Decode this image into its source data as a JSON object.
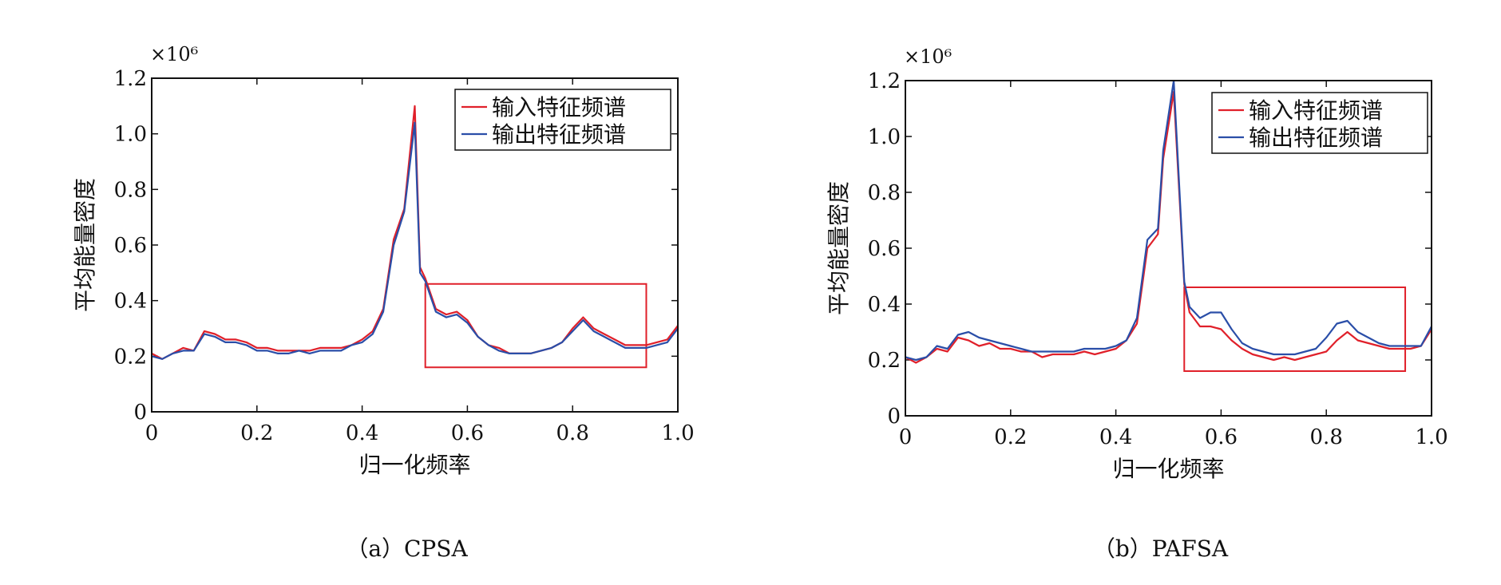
{
  "chart_data": [
    {
      "type": "line",
      "caption": "（a）CPSA",
      "multiplier": "×10⁶",
      "xlabel": "归一化频率",
      "ylabel": "平均能量密度",
      "xlim": [
        0,
        1.0
      ],
      "ylim": [
        0,
        1.2
      ],
      "xticks": [
        "0",
        "0.2",
        "0.4",
        "0.6",
        "0.8",
        "1.0"
      ],
      "yticks": [
        "0",
        "0.2",
        "0.4",
        "0.6",
        "0.8",
        "1.0",
        "1.2"
      ],
      "legend_position": "top-right",
      "highlight_box": {
        "x": [
          0.52,
          0.94
        ],
        "y": [
          0.16,
          0.46
        ],
        "color": "#e0202a"
      },
      "x": [
        0,
        0.02,
        0.04,
        0.06,
        0.08,
        0.1,
        0.12,
        0.14,
        0.16,
        0.18,
        0.2,
        0.22,
        0.24,
        0.26,
        0.28,
        0.3,
        0.32,
        0.34,
        0.36,
        0.38,
        0.4,
        0.42,
        0.44,
        0.46,
        0.48,
        0.5,
        0.51,
        0.52,
        0.54,
        0.56,
        0.58,
        0.6,
        0.62,
        0.64,
        0.66,
        0.68,
        0.7,
        0.72,
        0.74,
        0.76,
        0.78,
        0.8,
        0.82,
        0.84,
        0.86,
        0.88,
        0.9,
        0.92,
        0.94,
        0.96,
        0.98,
        1.0
      ],
      "series": [
        {
          "name": "输入特征频谱",
          "color": "#e0202a",
          "values": [
            0.21,
            0.19,
            0.21,
            0.23,
            0.22,
            0.29,
            0.28,
            0.26,
            0.26,
            0.25,
            0.23,
            0.23,
            0.22,
            0.22,
            0.22,
            0.22,
            0.23,
            0.23,
            0.23,
            0.24,
            0.26,
            0.29,
            0.37,
            0.62,
            0.73,
            1.1,
            0.52,
            0.48,
            0.37,
            0.35,
            0.36,
            0.33,
            0.27,
            0.24,
            0.23,
            0.21,
            0.21,
            0.21,
            0.22,
            0.23,
            0.25,
            0.3,
            0.34,
            0.3,
            0.28,
            0.26,
            0.24,
            0.24,
            0.24,
            0.25,
            0.26,
            0.31
          ]
        },
        {
          "name": "输出特征频谱",
          "color": "#2a4ea8",
          "values": [
            0.2,
            0.19,
            0.21,
            0.22,
            0.22,
            0.28,
            0.27,
            0.25,
            0.25,
            0.24,
            0.22,
            0.22,
            0.21,
            0.21,
            0.22,
            0.21,
            0.22,
            0.22,
            0.22,
            0.24,
            0.25,
            0.28,
            0.36,
            0.6,
            0.72,
            1.04,
            0.5,
            0.47,
            0.36,
            0.34,
            0.35,
            0.32,
            0.27,
            0.24,
            0.22,
            0.21,
            0.21,
            0.21,
            0.22,
            0.23,
            0.25,
            0.29,
            0.33,
            0.29,
            0.27,
            0.25,
            0.23,
            0.23,
            0.23,
            0.24,
            0.25,
            0.3
          ]
        }
      ]
    },
    {
      "type": "line",
      "caption": "（b）PAFSA",
      "multiplier": "×10⁶",
      "xlabel": "归一化频率",
      "ylabel": "平均能量密度",
      "xlim": [
        0,
        1.0
      ],
      "ylim": [
        0,
        1.2
      ],
      "xticks": [
        "0",
        "0.2",
        "0.4",
        "0.6",
        "0.8",
        "1.0"
      ],
      "yticks": [
        "0",
        "0.2",
        "0.4",
        "0.6",
        "0.8",
        "1.0",
        "1.2"
      ],
      "legend_position": "top-right",
      "highlight_box": {
        "x": [
          0.53,
          0.95
        ],
        "y": [
          0.16,
          0.46
        ],
        "color": "#e0202a"
      },
      "x": [
        0,
        0.02,
        0.04,
        0.06,
        0.08,
        0.1,
        0.12,
        0.14,
        0.16,
        0.18,
        0.2,
        0.22,
        0.24,
        0.26,
        0.28,
        0.3,
        0.32,
        0.34,
        0.36,
        0.38,
        0.4,
        0.42,
        0.44,
        0.46,
        0.48,
        0.49,
        0.51,
        0.53,
        0.54,
        0.56,
        0.58,
        0.6,
        0.62,
        0.64,
        0.66,
        0.68,
        0.7,
        0.72,
        0.74,
        0.76,
        0.78,
        0.8,
        0.82,
        0.84,
        0.86,
        0.88,
        0.9,
        0.92,
        0.94,
        0.96,
        0.98,
        1.0
      ],
      "series": [
        {
          "name": "输入特征频谱",
          "color": "#e0202a",
          "values": [
            0.21,
            0.19,
            0.21,
            0.24,
            0.23,
            0.28,
            0.27,
            0.25,
            0.26,
            0.24,
            0.24,
            0.23,
            0.23,
            0.21,
            0.22,
            0.22,
            0.22,
            0.23,
            0.22,
            0.23,
            0.24,
            0.27,
            0.33,
            0.6,
            0.65,
            0.92,
            1.16,
            0.47,
            0.37,
            0.32,
            0.32,
            0.31,
            0.27,
            0.24,
            0.22,
            0.21,
            0.2,
            0.21,
            0.2,
            0.21,
            0.22,
            0.23,
            0.27,
            0.3,
            0.27,
            0.26,
            0.25,
            0.24,
            0.24,
            0.24,
            0.25,
            0.31
          ]
        },
        {
          "name": "输出特征频谱",
          "color": "#2a4ea8",
          "values": [
            0.21,
            0.2,
            0.21,
            0.25,
            0.24,
            0.29,
            0.3,
            0.28,
            0.27,
            0.26,
            0.25,
            0.24,
            0.23,
            0.23,
            0.23,
            0.23,
            0.23,
            0.24,
            0.24,
            0.24,
            0.25,
            0.27,
            0.35,
            0.63,
            0.67,
            0.95,
            1.2,
            0.48,
            0.39,
            0.35,
            0.37,
            0.37,
            0.31,
            0.26,
            0.24,
            0.23,
            0.22,
            0.22,
            0.22,
            0.23,
            0.24,
            0.28,
            0.33,
            0.34,
            0.3,
            0.28,
            0.26,
            0.25,
            0.25,
            0.25,
            0.25,
            0.32
          ]
        }
      ]
    }
  ]
}
